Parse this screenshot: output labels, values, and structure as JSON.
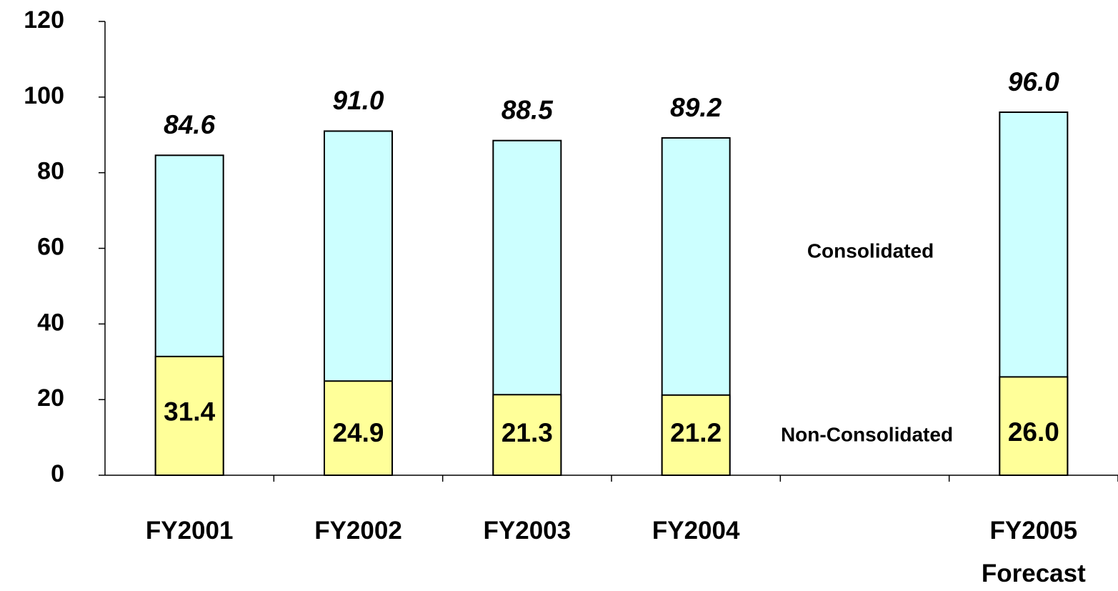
{
  "chart_data": {
    "type": "bar",
    "overlap": true,
    "categories": [
      "FY2001",
      "FY2002",
      "FY2003",
      "FY2004",
      null,
      "FY2005 Forecast"
    ],
    "series": [
      {
        "name": "Consolidated",
        "color": "#ccffff",
        "values": [
          84.6,
          91.0,
          88.5,
          89.2,
          null,
          96.0
        ],
        "value_labels": [
          "84.6",
          "91.0",
          "88.5",
          "89.2",
          null,
          "96.0"
        ]
      },
      {
        "name": "Non-Consolidated",
        "color": "#ffff99",
        "values": [
          31.4,
          24.9,
          21.3,
          21.2,
          null,
          26.0
        ],
        "value_labels": [
          "31.4",
          "24.9",
          "21.3",
          "21.2",
          null,
          "26.0"
        ]
      }
    ],
    "ylim": [
      0,
      120
    ],
    "yticks": [
      0,
      20,
      40,
      60,
      80,
      100,
      120
    ],
    "grid": false
  }
}
